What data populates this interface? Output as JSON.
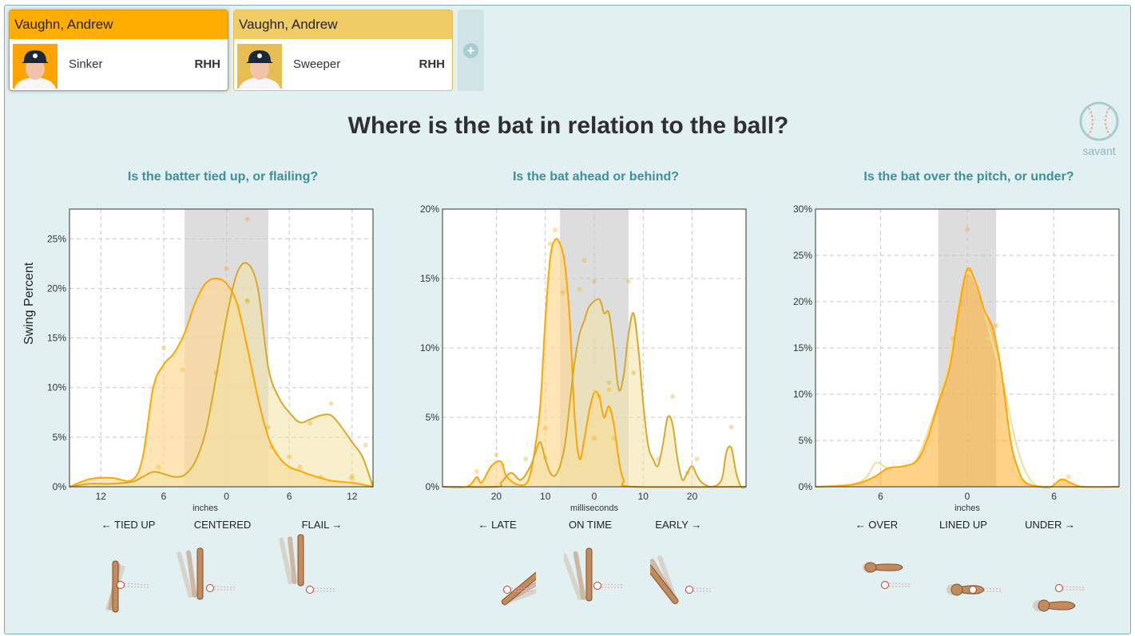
{
  "players": [
    {
      "name": "Vaughn, Andrew",
      "pitch": "Sinker",
      "hand": "RHH",
      "color": "#ffad00"
    },
    {
      "name": "Vaughn, Andrew",
      "pitch": "Sweeper",
      "hand": "RHH",
      "color": "#f0cc67"
    }
  ],
  "add_button": "+",
  "title": "Where is the bat in relation to the ball?",
  "logo_text": "savant",
  "y_axis_label": "Swing Percent",
  "chart_data": [
    {
      "type": "area",
      "title": "Is the batter tied up, or flailing?",
      "xlabel": "inches",
      "ylabel": "Swing Percent",
      "xlim": [
        -15,
        14
      ],
      "x_reversed_left_labels": true,
      "ylim": [
        0,
        28
      ],
      "x_ticks": [
        {
          "v": -12,
          "label": "12"
        },
        {
          "v": -6,
          "label": "6"
        },
        {
          "v": 0,
          "label": "0"
        },
        {
          "v": 6,
          "label": "6"
        },
        {
          "v": 12,
          "label": "12"
        }
      ],
      "y_ticks": [
        {
          "v": 0,
          "label": "0%"
        },
        {
          "v": 5,
          "label": "5%"
        },
        {
          "v": 10,
          "label": "10%"
        },
        {
          "v": 15,
          "label": "15%"
        },
        {
          "v": 20,
          "label": "20%"
        },
        {
          "v": 25,
          "label": "25%"
        }
      ],
      "shade": [
        -4,
        4
      ],
      "categories": [
        {
          "v": -9,
          "label": "← TIED UP"
        },
        {
          "v": 0,
          "label": "CENTERED"
        },
        {
          "v": 9.5,
          "label": "FLAIL →"
        }
      ],
      "series": [
        {
          "color": "#ffa500",
          "fill": "#ffd88c",
          "points": [
            [
              -15,
              0
            ],
            [
              -13,
              0.8
            ],
            [
              -11,
              0.9
            ],
            [
              -9,
              0.7
            ],
            [
              -8,
              3
            ],
            [
              -7,
              10
            ],
            [
              -6,
              12.3
            ],
            [
              -5,
              13.5
            ],
            [
              -4,
              15.5
            ],
            [
              -3,
              18.5
            ],
            [
              -2,
              20.5
            ],
            [
              -1,
              21
            ],
            [
              0,
              20.5
            ],
            [
              1,
              18.5
            ],
            [
              2,
              14
            ],
            [
              3,
              9
            ],
            [
              4,
              5
            ],
            [
              5,
              3
            ],
            [
              6,
              2
            ],
            [
              7,
              1.6
            ],
            [
              8,
              1.2
            ],
            [
              9,
              0.9
            ],
            [
              10,
              0.6
            ],
            [
              12,
              0.4
            ],
            [
              14,
              0
            ]
          ],
          "dots": [
            [
              -6,
              14
            ],
            [
              -6.5,
              2
            ],
            [
              -4.2,
              11.8
            ],
            [
              0,
              22
            ],
            [
              -1,
              11.5
            ],
            [
              2,
              18.7
            ],
            [
              4.3,
              4
            ],
            [
              6,
              3
            ],
            [
              7,
              2
            ],
            [
              9,
              1
            ],
            [
              12,
              0.8
            ]
          ]
        },
        {
          "color": "#d8a929",
          "fill": "#f3e1a3",
          "points": [
            [
              -15,
              0
            ],
            [
              -13,
              0.3
            ],
            [
              -11,
              0.3
            ],
            [
              -9,
              0.5
            ],
            [
              -8,
              1
            ],
            [
              -7,
              1.5
            ],
            [
              -6,
              1.3
            ],
            [
              -5,
              1
            ],
            [
              -4,
              1.2
            ],
            [
              -3,
              2.5
            ],
            [
              -2,
              5.5
            ],
            [
              -1,
              11
            ],
            [
              0,
              17
            ],
            [
              1,
              21.5
            ],
            [
              2,
              22.5
            ],
            [
              3,
              20
            ],
            [
              4,
              12
            ],
            [
              5,
              9
            ],
            [
              6,
              7.5
            ],
            [
              7,
              6.5
            ],
            [
              8,
              6.8
            ],
            [
              9,
              7.2
            ],
            [
              10,
              7.2
            ],
            [
              11,
              6
            ],
            [
              12,
              4.5
            ],
            [
              13,
              3
            ],
            [
              14,
              0
            ]
          ],
          "dots": [
            [
              2,
              27
            ],
            [
              2,
              18.8
            ],
            [
              4,
              6
            ],
            [
              8,
              6.4
            ],
            [
              10,
              8.4
            ],
            [
              13.3,
              4.2
            ],
            [
              12,
              1.1
            ]
          ]
        }
      ]
    },
    {
      "type": "area",
      "title": "Is the bat ahead or behind?",
      "xlabel": "milliseconds",
      "xlim": [
        -31,
        31
      ],
      "ylim": [
        0,
        20
      ],
      "x_ticks": [
        {
          "v": -20,
          "label": "20"
        },
        {
          "v": -10,
          "label": "10"
        },
        {
          "v": 0,
          "label": "0"
        },
        {
          "v": 10,
          "label": "10"
        },
        {
          "v": 20,
          "label": "20"
        }
      ],
      "y_ticks": [
        {
          "v": 0,
          "label": "0%"
        },
        {
          "v": 5,
          "label": "5%"
        },
        {
          "v": 10,
          "label": "10%"
        },
        {
          "v": 15,
          "label": "15%"
        },
        {
          "v": 20,
          "label": "20%"
        }
      ],
      "shade": [
        -7,
        7
      ],
      "categories": [
        {
          "v": -19,
          "label": "← LATE"
        },
        {
          "v": 0,
          "label": "ON TIME"
        },
        {
          "v": 18,
          "label": "EARLY →"
        }
      ],
      "series": [
        {
          "color": "#ffa500",
          "fill": "#ffd88c",
          "points": [
            [
              -31,
              0
            ],
            [
              -26,
              0
            ],
            [
              -24,
              0.7
            ],
            [
              -23,
              0.3
            ],
            [
              -21,
              1.5
            ],
            [
              -19,
              1.8
            ],
            [
              -18,
              0.8
            ],
            [
              -16,
              0.2
            ],
            [
              -14,
              0.2
            ],
            [
              -13,
              1
            ],
            [
              -12,
              3
            ],
            [
              -11,
              6
            ],
            [
              -10,
              12
            ],
            [
              -9,
              16.5
            ],
            [
              -8,
              17.8
            ],
            [
              -7,
              17.5
            ],
            [
              -6,
              16
            ],
            [
              -5,
              12
            ],
            [
              -4,
              5
            ],
            [
              -3,
              2
            ],
            [
              -2,
              3.5
            ],
            [
              -1,
              5.5
            ],
            [
              0,
              6.8
            ],
            [
              1,
              6.5
            ],
            [
              2,
              5
            ],
            [
              3,
              5.8
            ],
            [
              4,
              4.5
            ],
            [
              5,
              2
            ],
            [
              6,
              0.5
            ],
            [
              8,
              0
            ],
            [
              31,
              0
            ]
          ],
          "dots": [
            [
              -24,
              1.1
            ],
            [
              -20,
              2.3
            ],
            [
              -10,
              4.2
            ],
            [
              -8,
              18.5
            ],
            [
              -9,
              17.5
            ],
            [
              -6.5,
              14
            ],
            [
              -3,
              14.2
            ],
            [
              -2,
              16.3
            ],
            [
              0,
              3.5
            ],
            [
              1,
              6.5
            ],
            [
              3,
              7
            ],
            [
              4,
              3.5
            ]
          ]
        },
        {
          "color": "#d8a929",
          "fill": "#f3e1a3",
          "points": [
            [
              -31,
              0
            ],
            [
              -20,
              0
            ],
            [
              -19,
              0.3
            ],
            [
              -17,
              1
            ],
            [
              -15,
              0.5
            ],
            [
              -13,
              1.5
            ],
            [
              -12,
              2.5
            ],
            [
              -11,
              3.2
            ],
            [
              -10,
              2
            ],
            [
              -9,
              1
            ],
            [
              -8,
              0.8
            ],
            [
              -7,
              1.5
            ],
            [
              -6,
              3
            ],
            [
              -5,
              6
            ],
            [
              -4,
              9
            ],
            [
              -3,
              11
            ],
            [
              -2,
              12
            ],
            [
              -1,
              13
            ],
            [
              1,
              13.5
            ],
            [
              2,
              12.5
            ],
            [
              3,
              12.5
            ],
            [
              4,
              10
            ],
            [
              5,
              7
            ],
            [
              6,
              8
            ],
            [
              7,
              11
            ],
            [
              8,
              12.5
            ],
            [
              9,
              10
            ],
            [
              10,
              6
            ],
            [
              11,
              3
            ],
            [
              12,
              2
            ],
            [
              13,
              1.5
            ],
            [
              14,
              3
            ],
            [
              15,
              5
            ],
            [
              16,
              4.5
            ],
            [
              17,
              2
            ],
            [
              18,
              0.5
            ],
            [
              19,
              1
            ],
            [
              20,
              1.5
            ],
            [
              21,
              0.8
            ],
            [
              22,
              0.3
            ],
            [
              24,
              0
            ],
            [
              26,
              0.5
            ],
            [
              27,
              2.5
            ],
            [
              28,
              2.8
            ],
            [
              29,
              1
            ],
            [
              30,
              0
            ],
            [
              31,
              0
            ]
          ],
          "dots": [
            [
              -14,
              2
            ],
            [
              -10,
              2.1
            ],
            [
              0,
              14.8
            ],
            [
              3,
              7.5
            ],
            [
              7,
              14.8
            ],
            [
              8,
              8.2
            ],
            [
              13,
              2
            ],
            [
              16,
              6.5
            ],
            [
              21,
              2
            ],
            [
              28,
              4.3
            ],
            [
              19,
              1
            ]
          ]
        }
      ]
    },
    {
      "type": "area",
      "title": "Is the bat over the pitch, or under?",
      "xlabel": "inches",
      "xlim": [
        -10.5,
        10.5
      ],
      "ylim": [
        0,
        30
      ],
      "x_ticks": [
        {
          "v": -6,
          "label": "6"
        },
        {
          "v": 0,
          "label": "0"
        },
        {
          "v": 6,
          "label": "6"
        }
      ],
      "y_ticks": [
        {
          "v": 0,
          "label": "0%"
        },
        {
          "v": 5,
          "label": "5%"
        },
        {
          "v": 10,
          "label": "10%"
        },
        {
          "v": 15,
          "label": "15%"
        },
        {
          "v": 20,
          "label": "20%"
        },
        {
          "v": 25,
          "label": "25%"
        },
        {
          "v": 30,
          "label": "30%"
        }
      ],
      "shade": [
        -2,
        2
      ],
      "categories": [
        {
          "v": -6,
          "label": "← OVER"
        },
        {
          "v": 0,
          "label": "LINED UP"
        },
        {
          "v": 6,
          "label": "UNDER →"
        }
      ],
      "series": [
        {
          "color": "#f2dd9a",
          "fill": "none",
          "points": [
            [
              -10.5,
              0
            ],
            [
              -8,
              0.3
            ],
            [
              -7,
              1
            ],
            [
              -6.3,
              2.6
            ],
            [
              -5.5,
              2
            ],
            [
              -4.5,
              2
            ],
            [
              -3.5,
              3
            ],
            [
              -2.5,
              7
            ],
            [
              -1.5,
              12
            ],
            [
              -0.8,
              18
            ],
            [
              -0.2,
              22.5
            ],
            [
              0.2,
              23
            ],
            [
              0.8,
              21
            ],
            [
              1.5,
              17
            ],
            [
              2.5,
              11
            ],
            [
              3.5,
              4
            ],
            [
              4.5,
              0.5
            ],
            [
              6,
              0
            ],
            [
              10.5,
              0
            ]
          ],
          "dots": [
            [
              -1.5,
              10.5
            ],
            [
              1.5,
              16
            ]
          ]
        },
        {
          "color": "#ffa500",
          "fill": "#ffad26",
          "points": [
            [
              -10.5,
              0
            ],
            [
              -8,
              0.2
            ],
            [
              -6.5,
              1
            ],
            [
              -5.5,
              2
            ],
            [
              -4.5,
              2.2
            ],
            [
              -3.5,
              2.8
            ],
            [
              -2.8,
              5
            ],
            [
              -2,
              9
            ],
            [
              -1.2,
              13
            ],
            [
              -0.6,
              19
            ],
            [
              0,
              23.5
            ],
            [
              0.6,
              22
            ],
            [
              1.2,
              19
            ],
            [
              1.8,
              17
            ],
            [
              2.4,
              12
            ],
            [
              3,
              5
            ],
            [
              3.5,
              2
            ],
            [
              4,
              0.5
            ],
            [
              5,
              0
            ],
            [
              5.8,
              0
            ],
            [
              6.5,
              0.8
            ],
            [
              7.2,
              0.4
            ],
            [
              8,
              0
            ],
            [
              10.5,
              0
            ]
          ],
          "dots": [
            [
              0,
              27.8
            ],
            [
              2,
              17.4
            ],
            [
              -1,
              16
            ],
            [
              7,
              1.1
            ]
          ]
        }
      ]
    }
  ]
}
